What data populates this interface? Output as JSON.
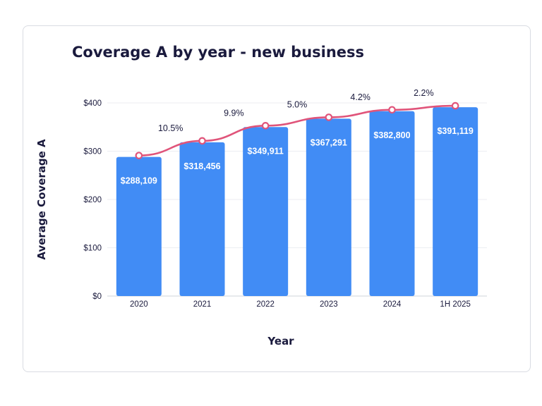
{
  "chart_data": {
    "type": "bar",
    "title": "Coverage A by year - new business",
    "xlabel": "Year",
    "ylabel": "Average Coverage A",
    "categories": [
      "2020",
      "2021",
      "2022",
      "2023",
      "2024",
      "1H 2025"
    ],
    "values": [
      288109,
      318456,
      349911,
      367291,
      382800,
      391119
    ],
    "value_labels": [
      "$288,109",
      "$318,456",
      "$349,911",
      "$367,291",
      "$382,800",
      "$391,119"
    ],
    "growth_labels": [
      "",
      "10.5%",
      "9.9%",
      "5.0%",
      "4.2%",
      "2.2%"
    ],
    "ylim": [
      0,
      400000
    ],
    "yticks": [
      {
        "value": 0,
        "label": "$0"
      },
      {
        "value": 100000,
        "label": "$100"
      },
      {
        "value": 200000,
        "label": "$200"
      },
      {
        "value": 300000,
        "label": "$300"
      },
      {
        "value": 400000,
        "label": "$400"
      }
    ],
    "grid": true,
    "series": [
      {
        "type": "bar",
        "color": "#418cf5"
      },
      {
        "type": "line",
        "color": "#e0547a"
      }
    ]
  }
}
